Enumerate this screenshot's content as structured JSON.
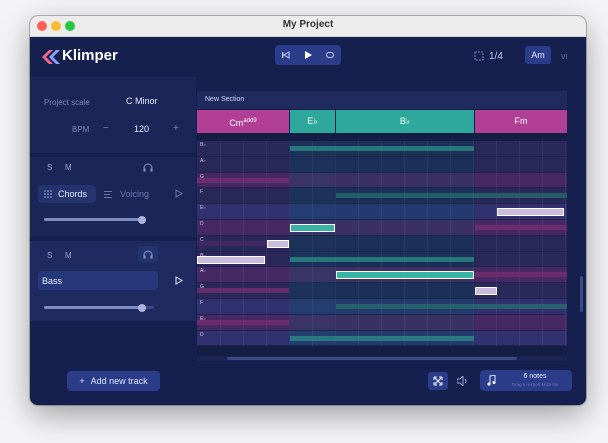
{
  "window": {
    "title": "My Project"
  },
  "app": {
    "name": "Klimper"
  },
  "header": {
    "grid": "1/4",
    "key": "Am",
    "key_mode": "vi"
  },
  "project": {
    "scale_label": "Project scale",
    "scale_value": "C Minor",
    "bpm_label": "BPM",
    "bpm_value": "120",
    "minus": "−",
    "plus": "+"
  },
  "tracks": [
    {
      "s": "S",
      "m": "M",
      "tab_chords": "Chords",
      "tab_voicing": "Voicing"
    },
    {
      "s": "S",
      "m": "M",
      "name": "Bass"
    }
  ],
  "section": {
    "name": "New Section"
  },
  "chords": [
    {
      "label": "Cm",
      "sup": "add9",
      "color": "#b03f95"
    },
    {
      "label": "E♭",
      "color": "#2ea79c"
    },
    {
      "label": "B♭",
      "color": "#2ea79c"
    },
    {
      "label": "Fm",
      "color": "#b03f95"
    }
  ],
  "note_labels": [
    "B♭",
    "A♭",
    "G",
    "F",
    "E♭",
    "D",
    "C",
    "B♭",
    "A♭",
    "G",
    "F",
    "E♭",
    "D"
  ],
  "buttons": {
    "add_track": "Add new track"
  },
  "notes_panel": {
    "title": "6 notes",
    "subtitle": "Drag to export MIDI file"
  },
  "colors": {
    "accent": "#b03f95",
    "teal": "#2ea79c",
    "bg": "#16204f",
    "panel": "#1f2b5e"
  }
}
